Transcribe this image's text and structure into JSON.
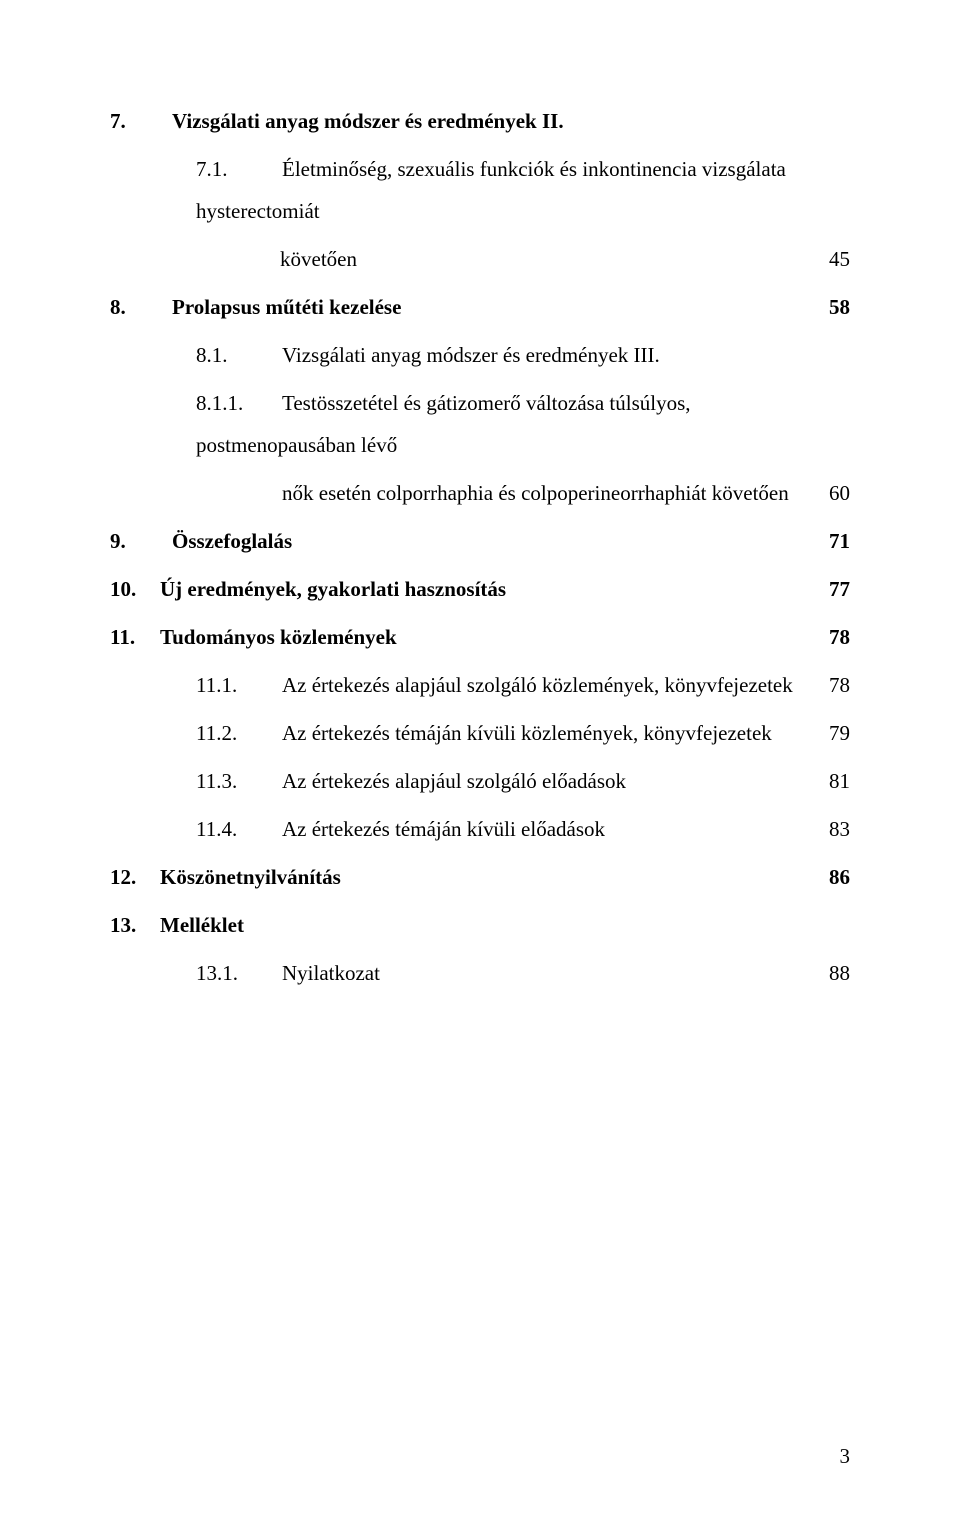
{
  "colors": {
    "text": "#000000",
    "background": "#ffffff"
  },
  "typography": {
    "family": "Times New Roman",
    "size_pt_estimate": 12,
    "line_height": 2.0
  },
  "footer": {
    "page_number": "3"
  },
  "toc": {
    "e7": {
      "num": "7.",
      "title": "Vizsgálati anyag módszer és eredmények II."
    },
    "e71": {
      "num": "7.1.",
      "title": "Életminőség, szexuális funkciók és inkontinencia vizsgálata hysterectomiát",
      "title_cont": "követően",
      "page": "45"
    },
    "e8": {
      "num": "8.",
      "title": "Prolapsus műtéti kezelése",
      "page": "58"
    },
    "e81": {
      "num": "8.1.",
      "title": "Vizsgálati anyag módszer és eredmények III."
    },
    "e811": {
      "num": "8.1.1.",
      "title": "Testösszetétel és gátizomerő változása túlsúlyos, postmenopausában lévő",
      "title_cont": "nők esetén colporrhaphia és colpoperineorrhaphiát követően",
      "page": "60"
    },
    "e9": {
      "num": "9.",
      "title": "Összefoglalás",
      "page": "71"
    },
    "e10": {
      "num": "10.",
      "title": "Új eredmények, gyakorlati hasznosítás",
      "page": "77"
    },
    "e11": {
      "num": "11.",
      "title": "Tudományos közlemények",
      "page": "78"
    },
    "e111": {
      "num": "11.1.",
      "title": "Az értekezés alapjául szolgáló közlemények, könyvfejezetek",
      "page": "78"
    },
    "e112": {
      "num": "11.2.",
      "title": "Az értekezés témáján kívüli közlemények, könyvfejezetek",
      "page": "79"
    },
    "e113": {
      "num": "11.3.",
      "title": "Az értekezés alapjául szolgáló előadások",
      "page": "81"
    },
    "e114": {
      "num": "11.4.",
      "title": "Az értekezés témáján kívüli előadások",
      "page": "83"
    },
    "e12": {
      "num": "12.",
      "title": "Köszönetnyilvánítás",
      "page": "86"
    },
    "e13": {
      "num": "13.",
      "title": "Melléklet"
    },
    "e131": {
      "num": "13.1.",
      "title": "Nyilatkozat",
      "page": "88"
    }
  }
}
